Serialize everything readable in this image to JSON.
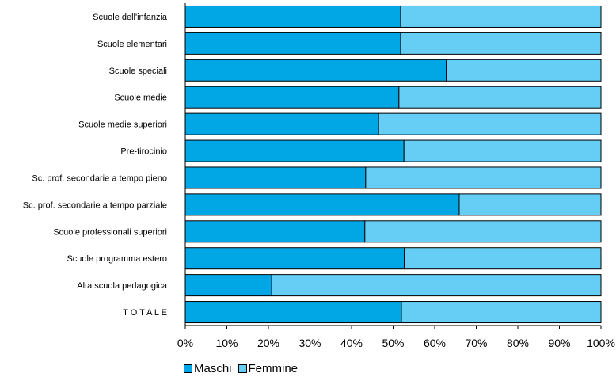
{
  "chart_data": {
    "type": "bar",
    "orientation": "horizontal",
    "stacked": true,
    "percent": true,
    "categories": [
      "Scuole dell'infanzia",
      "Scuole elementari",
      "Scuole speciali",
      "Scuole medie",
      "Scuole medie superiori",
      "Pre-tirocinio",
      "Sc. prof. secondarie a tempo pieno",
      "Sc. prof. secondarie a tempo parziale",
      "Scuole professionali superiori",
      "Scuole programma estero",
      "Alta scuola pedagogica",
      "T O T A L E"
    ],
    "series": [
      {
        "name": "Maschi",
        "color": "#00a7e4",
        "values": [
          51.8,
          51.8,
          62.8,
          51.4,
          46.5,
          52.6,
          43.4,
          65.9,
          43.2,
          52.7,
          20.8,
          52.0
        ]
      },
      {
        "name": "Femmine",
        "color": "#66cef5",
        "values": [
          48.2,
          48.2,
          37.2,
          48.6,
          53.5,
          47.4,
          56.6,
          34.1,
          56.8,
          47.3,
          79.2,
          48.0
        ]
      }
    ],
    "xlim": [
      0,
      100
    ],
    "xticks": [
      "0%",
      "10%",
      "20%",
      "30%",
      "40%",
      "50%",
      "60%",
      "70%",
      "80%",
      "90%",
      "100%"
    ],
    "legend_position": "bottom-left",
    "grid": false
  }
}
